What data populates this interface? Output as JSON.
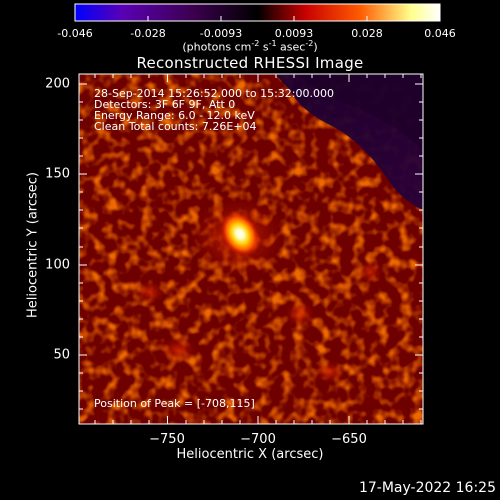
{
  "colorbar": {
    "tick_labels": [
      "-0.046",
      "-0.028",
      "-0.0093",
      "0.0093",
      "0.028",
      "0.046"
    ],
    "units_prefix": "(photons cm",
    "units_exp1": "-2",
    "units_mid": " s",
    "units_exp2": "-1",
    "units_mid2": " asec",
    "units_exp3": "-2",
    "units_suffix": ")"
  },
  "plot": {
    "title": "Reconstructed RHESSI Image",
    "annotations": [
      "28-Sep-2014 15:26:52.000 to 15:32:00.000",
      "Detectors: 3F 6F 9F, Att 0",
      "Energy Range: 6.0 - 12.0 keV",
      "Clean     Total counts: 7.26E+04"
    ],
    "peak_label": "Position of Peak = [-708,115]",
    "xlabel": "Heliocentric X (arcsec)",
    "ylabel": "Heliocentric Y (arcsec)",
    "xticks": [
      "−750",
      "−700",
      "−650"
    ],
    "yticks": [
      "200",
      "150",
      "100",
      "50"
    ]
  },
  "footer": {
    "timestamp": "17-May-2022 16:25"
  },
  "chart_data": {
    "type": "heatmap",
    "title": "Reconstructed RHESSI Image",
    "xlabel": "Heliocentric X (arcsec)",
    "ylabel": "Heliocentric Y (arcsec)",
    "xlim": [
      -798,
      -616
    ],
    "ylim": [
      11,
      205
    ],
    "colorbar_range": [
      -0.046,
      0.046
    ],
    "colorbar_ticks": [
      -0.046,
      -0.028,
      -0.0093,
      0.0093,
      0.028,
      0.046
    ],
    "colorbar_units": "photons cm^-2 s^-1 asec^-2",
    "peak_position": [
      -708,
      115
    ],
    "peak_value": 0.046,
    "colors": {
      "background": "#000000",
      "colormap": [
        "#0000ff",
        "#5a00b4",
        "#3c0050",
        "#000000",
        "#c80000",
        "#ff5a00",
        "#ffff8c",
        "#ffffff"
      ]
    }
  }
}
